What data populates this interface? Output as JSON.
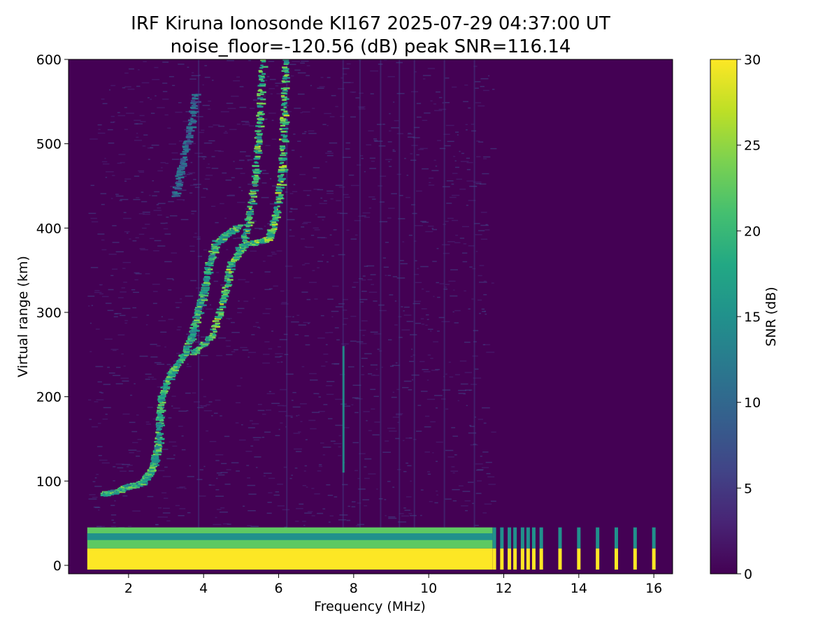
{
  "chart_data": {
    "type": "heatmap",
    "title": "IRF Kiruna Ionosonde KI167 2025-07-29 04:37:00  UT",
    "subtitle": "noise_floor=-120.56 (dB) peak SNR=116.14",
    "xlabel": "Frequency (MHz)",
    "ylabel": "Virtual range (km)",
    "xlim": [
      0.4,
      16.5
    ],
    "ylim": [
      -10,
      600
    ],
    "x_ticks": [
      2,
      4,
      6,
      8,
      10,
      12,
      14,
      16
    ],
    "y_ticks": [
      0,
      100,
      200,
      300,
      400,
      500,
      600
    ],
    "colorbar": {
      "label": "SNR (dB)",
      "range": [
        0,
        30
      ],
      "ticks": [
        0,
        5,
        10,
        15,
        20,
        25,
        30
      ],
      "colormap": "viridis"
    },
    "colors": {
      "background": "#440154",
      "strong": "#fde725",
      "green": "#5ec962",
      "teal": "#21918c",
      "blue": "#3b528b"
    },
    "sweep_start_mhz": 0.9,
    "continuous_sweep_end_mhz": 11.7,
    "near_range_saturation": {
      "saturated_km": [
        -5,
        20
      ],
      "edge_km": [
        20,
        45
      ]
    },
    "discrete_channels_mhz": [
      11.75,
      11.95,
      12.15,
      12.3,
      12.5,
      12.65,
      12.8,
      13.0,
      13.5,
      14.0,
      14.5,
      15.0,
      15.5,
      16.0
    ],
    "traces": [
      {
        "description": "E/F1 layer rising trace",
        "points": [
          [
            1.3,
            87
          ],
          [
            1.6,
            90
          ],
          [
            2.0,
            96
          ],
          [
            2.3,
            100
          ],
          [
            2.5,
            110
          ],
          [
            2.65,
            125
          ],
          [
            2.75,
            145
          ],
          [
            2.8,
            175
          ],
          [
            2.85,
            205
          ],
          [
            3.1,
            230
          ],
          [
            3.4,
            250
          ],
          [
            3.6,
            270
          ],
          [
            3.8,
            300
          ],
          [
            3.95,
            325
          ],
          [
            4.1,
            360
          ],
          [
            4.3,
            385
          ],
          [
            4.6,
            395
          ],
          [
            4.9,
            405
          ]
        ],
        "snr": 22
      },
      {
        "description": "F2 ordinary trace",
        "points": [
          [
            3.7,
            255
          ],
          [
            4.2,
            275
          ],
          [
            4.5,
            320
          ],
          [
            4.7,
            360
          ],
          [
            5.0,
            380
          ],
          [
            5.2,
            420
          ],
          [
            5.35,
            470
          ],
          [
            5.45,
            530
          ],
          [
            5.55,
            600
          ]
        ],
        "snr": 24
      },
      {
        "description": "F2 extraordinary trace",
        "points": [
          [
            4.9,
            380
          ],
          [
            5.3,
            385
          ],
          [
            5.7,
            390
          ],
          [
            5.9,
            420
          ],
          [
            6.05,
            470
          ],
          [
            6.1,
            530
          ],
          [
            6.15,
            600
          ]
        ],
        "snr": 25
      },
      {
        "description": "upper spread echo",
        "points": [
          [
            3.2,
            440
          ],
          [
            3.4,
            480
          ],
          [
            3.6,
            520
          ],
          [
            3.75,
            560
          ]
        ],
        "snr": 12
      }
    ]
  }
}
